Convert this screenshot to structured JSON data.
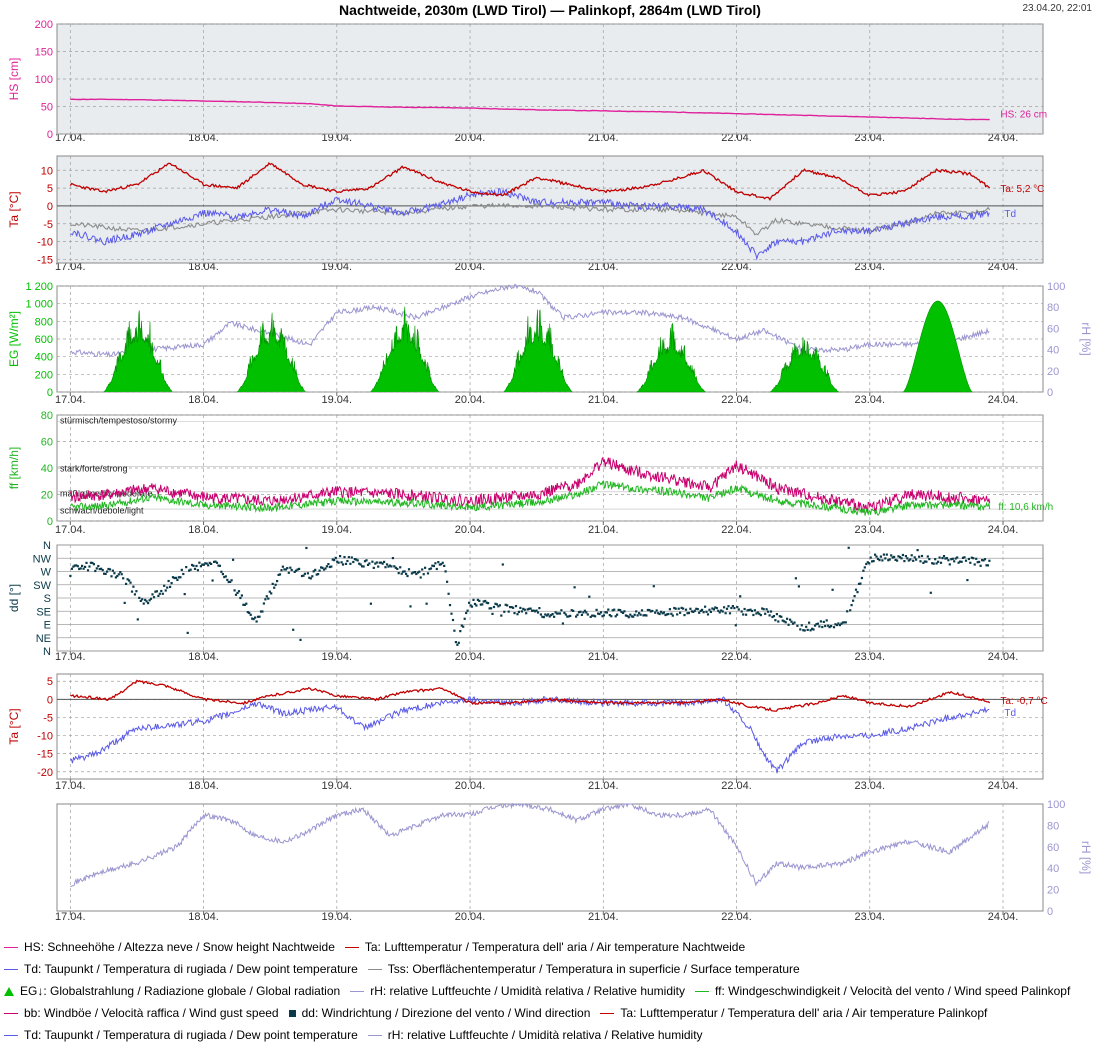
{
  "title": "Nachtweide, 2030m (LWD Tirol) — Palinkopf, 2864m (LWD Tirol)",
  "timestamp": "23.04.20, 22:01",
  "colors": {
    "hs": "#e0209a",
    "ta": "#c00000",
    "td": "#5a5ae8",
    "tss": "#8c8c8c",
    "eg": "#00c000",
    "rh": "#9a96d0",
    "ff": "#22b722",
    "bb": "#c8006e",
    "dd": "#0a3a4a",
    "panel_bg": "#e8ecef",
    "grid": "#a0a0a0"
  },
  "chart_data": [
    {
      "type": "line",
      "id": "hs",
      "x_ticks": [
        "17.04.",
        "18.04.",
        "19.04.",
        "20.04.",
        "21.04.",
        "22.04.",
        "23.04.",
        "24.04."
      ],
      "y_ticks": [
        "200",
        "150",
        "100",
        "50",
        "0"
      ],
      "ylabel": "HS [cm]",
      "ylim": [
        0,
        200
      ],
      "xlim": [
        0,
        7.05
      ],
      "series": [
        {
          "name": "HS",
          "x": [
            0,
            0.3,
            0.6,
            1.0,
            1.4,
            1.8,
            2.0,
            2.4,
            2.8,
            3.0,
            3.5,
            4.0,
            4.5,
            5.0,
            5.5,
            6.0,
            6.3,
            6.6,
            6.9
          ],
          "values": [
            63,
            63,
            62,
            60,
            58,
            55,
            51,
            49,
            48,
            47,
            44,
            42,
            40,
            37,
            34,
            31,
            29,
            27,
            26
          ]
        }
      ],
      "end_label": "HS: 26 cm"
    },
    {
      "type": "line",
      "id": "ta-nachtweide",
      "x_ticks": [
        "17.04.",
        "18.04.",
        "19.04.",
        "20.04.",
        "21.04.",
        "22.04.",
        "23.04.",
        "24.04."
      ],
      "y_ticks": [
        "10",
        "5",
        "0",
        "-5",
        "-10",
        "-15"
      ],
      "ylabel": "Ta [°C]",
      "ylim": [
        -16,
        14
      ],
      "series": [
        {
          "name": "Ta",
          "x": [
            0,
            0.25,
            0.5,
            0.75,
            1.0,
            1.25,
            1.5,
            1.75,
            2.0,
            2.25,
            2.5,
            2.75,
            3.0,
            3.25,
            3.5,
            3.75,
            4.0,
            4.25,
            4.5,
            4.75,
            5.0,
            5.25,
            5.5,
            5.75,
            6.0,
            6.25,
            6.5,
            6.75,
            6.9
          ],
          "values": [
            6,
            4,
            6,
            12,
            6,
            5,
            12,
            6,
            4,
            5,
            11,
            7,
            4,
            3,
            8,
            6,
            4,
            5,
            7,
            10,
            4,
            2,
            10,
            8,
            3,
            4,
            10,
            9,
            5
          ]
        },
        {
          "name": "Td",
          "x": [
            0,
            0.25,
            0.5,
            0.75,
            1.0,
            1.25,
            1.5,
            1.75,
            2.0,
            2.25,
            2.5,
            2.75,
            3.0,
            3.25,
            3.5,
            3.75,
            4.0,
            4.25,
            4.5,
            4.75,
            5.0,
            5.15,
            5.3,
            5.5,
            5.75,
            6.0,
            6.25,
            6.5,
            6.75,
            6.9
          ],
          "values": [
            -7,
            -10,
            -8,
            -5,
            -2,
            -3,
            -1,
            -3,
            2,
            0,
            -2,
            0,
            3,
            4,
            1,
            1,
            1,
            0,
            0,
            -1,
            -7,
            -14,
            -10,
            -10,
            -7,
            -7,
            -5,
            -3,
            -3,
            -2
          ]
        },
        {
          "name": "Tss",
          "x": [
            0,
            0.5,
            1.0,
            1.5,
            2.0,
            2.5,
            3.0,
            3.5,
            4.0,
            4.5,
            5.0,
            5.15,
            5.3,
            5.5,
            5.75,
            6.0,
            6.25,
            6.5,
            6.75,
            6.9
          ],
          "values": [
            -5,
            -7,
            -5,
            -3,
            -1,
            -2,
            0,
            0,
            -1,
            -1,
            -3,
            -8,
            -4,
            -5,
            -6,
            -7,
            -5,
            -2,
            -2,
            -1
          ]
        }
      ],
      "end_label": "Ta: 5,2 °C",
      "end_label_td": "Td"
    },
    {
      "type": "area",
      "id": "eg",
      "x_ticks": [
        "17.04.",
        "18.04.",
        "19.04.",
        "20.04.",
        "21.04.",
        "22.04.",
        "23.04.",
        "24.04."
      ],
      "y_ticks": [
        "1 200",
        "1 000",
        "800",
        "600",
        "400",
        "200",
        "0"
      ],
      "y2_ticks": [
        "100",
        "80",
        "60",
        "40",
        "20",
        "0"
      ],
      "ylabel": "EG [W/m²]",
      "y2label": "rH [%]",
      "ylim": [
        0,
        1200
      ],
      "y2lim": [
        0,
        100
      ],
      "series": [
        {
          "name": "EG",
          "day_peaks": [
            1000,
            990,
            1000,
            1020,
            800,
            730,
            1030,
            1040
          ]
        },
        {
          "name": "rH",
          "x": [
            0,
            0.3,
            0.6,
            1.0,
            1.2,
            1.5,
            1.8,
            2.0,
            2.3,
            2.6,
            3.0,
            3.3,
            3.5,
            3.7,
            4.0,
            4.3,
            4.6,
            4.8,
            5.0,
            5.2,
            5.5,
            5.8,
            6.0,
            6.3,
            6.6,
            6.9
          ],
          "values": [
            38,
            35,
            40,
            45,
            65,
            55,
            45,
            75,
            80,
            70,
            90,
            100,
            95,
            70,
            75,
            75,
            70,
            60,
            50,
            58,
            40,
            40,
            45,
            45,
            48,
            58
          ]
        }
      ]
    },
    {
      "type": "line",
      "id": "ff",
      "x_ticks": [
        "17.04.",
        "18.04.",
        "19.04.",
        "20.04.",
        "21.04.",
        "22.04.",
        "23.04.",
        "24.04."
      ],
      "y_ticks": [
        "80",
        "60",
        "40",
        "20",
        "0"
      ],
      "ylabel": "ff [km/h]",
      "ylim": [
        0,
        80
      ],
      "bands": [
        "stürmisch/tempestoso/stormy",
        "stark/forte/strong",
        "mäßig/medio/moderate",
        "schwach/debole/light"
      ],
      "series": [
        {
          "name": "bb",
          "x": [
            0,
            0.3,
            0.6,
            1.0,
            1.5,
            2.0,
            2.5,
            3.0,
            3.5,
            3.8,
            4.0,
            4.2,
            4.5,
            4.8,
            5.0,
            5.3,
            5.6,
            6.0,
            6.3,
            6.6,
            6.9
          ],
          "values": [
            18,
            20,
            25,
            18,
            15,
            22,
            20,
            15,
            20,
            28,
            45,
            38,
            32,
            25,
            42,
            25,
            18,
            10,
            20,
            18,
            15
          ]
        },
        {
          "name": "ff",
          "x": [
            0,
            0.3,
            0.6,
            1.0,
            1.5,
            2.0,
            2.5,
            3.0,
            3.5,
            3.8,
            4.0,
            4.2,
            4.5,
            4.8,
            5.0,
            5.3,
            5.6,
            6.0,
            6.3,
            6.6,
            6.9
          ],
          "values": [
            10,
            12,
            18,
            12,
            10,
            15,
            14,
            10,
            14,
            20,
            28,
            25,
            22,
            17,
            25,
            15,
            12,
            6,
            12,
            12,
            10.6
          ]
        }
      ],
      "end_label": "ff: 10,6 km/h"
    },
    {
      "type": "scatter",
      "id": "dd",
      "x_ticks": [
        "17.04.",
        "18.04.",
        "19.04.",
        "20.04.",
        "21.04.",
        "22.04.",
        "23.04.",
        "24.04."
      ],
      "y_ticks": [
        "N",
        "NW",
        "W",
        "SW",
        "S",
        "SE",
        "E",
        "NE",
        "N"
      ],
      "ylabel": "dd [°]",
      "ylim": [
        0,
        360
      ],
      "series": [
        {
          "name": "dd",
          "x": [
            0.0,
            0.2,
            0.4,
            0.55,
            0.7,
            0.85,
            1.0,
            1.1,
            1.4,
            1.5,
            1.6,
            1.8,
            2.0,
            2.2,
            2.4,
            2.6,
            2.8,
            2.9,
            3.0,
            3.2,
            3.4,
            3.6,
            3.8,
            4.0,
            4.3,
            4.6,
            4.9,
            5.2,
            5.5,
            5.7,
            5.8,
            6.0,
            6.2,
            6.5,
            6.8,
            6.9
          ],
          "values": [
            290,
            285,
            250,
            160,
            210,
            270,
            295,
            300,
            100,
            200,
            280,
            255,
            310,
            300,
            290,
            255,
            305,
            20,
            165,
            150,
            135,
            125,
            130,
            130,
            128,
            135,
            140,
            135,
            80,
            95,
            90,
            315,
            315,
            310,
            305,
            300
          ]
        }
      ]
    },
    {
      "type": "line",
      "id": "ta-palinkopf",
      "x_ticks": [
        "17.04.",
        "18.04.",
        "19.04.",
        "20.04.",
        "21.04.",
        "22.04.",
        "23.04.",
        "24.04."
      ],
      "y_ticks": [
        "5",
        "0",
        "-5",
        "-10",
        "-15",
        "-20"
      ],
      "ylabel": "Ta [°C]",
      "ylim": [
        -22,
        7
      ],
      "series": [
        {
          "name": "Ta",
          "x": [
            0,
            0.3,
            0.5,
            0.7,
            1.0,
            1.3,
            1.5,
            1.8,
            2.0,
            2.3,
            2.5,
            2.8,
            3.0,
            3.3,
            3.6,
            4.0,
            4.3,
            4.6,
            4.9,
            5.1,
            5.3,
            5.6,
            5.8,
            6.0,
            6.3,
            6.6,
            6.9
          ],
          "values": [
            1,
            0,
            5,
            4,
            0,
            -1,
            1,
            3,
            1,
            0,
            2,
            3,
            -1,
            -1,
            0,
            -1,
            -1,
            -1,
            0,
            -2,
            -3,
            -1,
            1,
            -1,
            -2,
            2,
            -0.7
          ]
        },
        {
          "name": "Td",
          "x": [
            0,
            0.2,
            0.5,
            0.8,
            1.0,
            1.2,
            1.4,
            1.6,
            1.8,
            2.0,
            2.2,
            2.5,
            2.8,
            3.0,
            3.3,
            3.6,
            4.0,
            4.3,
            4.6,
            4.9,
            5.1,
            5.2,
            5.3,
            5.5,
            5.8,
            6.0,
            6.3,
            6.6,
            6.9
          ],
          "values": [
            -17,
            -15,
            -8,
            -7,
            -6,
            -4,
            -1,
            -4,
            -3,
            -2,
            -8,
            -3,
            -1,
            0,
            -1,
            0,
            -1,
            -1,
            -1,
            0,
            -8,
            -15,
            -20,
            -12,
            -10,
            -10,
            -8,
            -5,
            -3
          ]
        }
      ],
      "end_label": "Ta: -0,7 °C",
      "end_label_td": "Td"
    },
    {
      "type": "line",
      "id": "rh-palinkopf",
      "x_ticks": [
        "17.04.",
        "18.04.",
        "19.04.",
        "20.04.",
        "21.04.",
        "22.04.",
        "23.04.",
        "24.04."
      ],
      "y2_ticks": [
        "100",
        "80",
        "60",
        "40",
        "20",
        "0"
      ],
      "y2label": "rH [%]",
      "y2lim": [
        0,
        100
      ],
      "series": [
        {
          "name": "rH",
          "x": [
            0,
            0.2,
            0.5,
            0.8,
            1.0,
            1.2,
            1.4,
            1.6,
            1.8,
            2.0,
            2.2,
            2.4,
            2.6,
            2.8,
            3.0,
            3.2,
            3.4,
            3.6,
            3.8,
            4.0,
            4.2,
            4.4,
            4.6,
            4.8,
            5.0,
            5.15,
            5.3,
            5.5,
            5.8,
            6.0,
            6.3,
            6.6,
            6.9
          ],
          "values": [
            25,
            35,
            45,
            60,
            90,
            85,
            70,
            65,
            75,
            90,
            95,
            70,
            80,
            90,
            90,
            98,
            100,
            95,
            85,
            95,
            100,
            90,
            90,
            95,
            60,
            25,
            45,
            40,
            45,
            55,
            65,
            55,
            82
          ]
        }
      ]
    }
  ],
  "legend": {
    "rows": [
      [
        {
          "symbol": "line",
          "color": "#e0209a",
          "label": "HS: Schneehöhe / Altezza neve / Snow height  Nachtweide"
        },
        {
          "symbol": "line",
          "color": "#c00000",
          "label": "Ta: Lufttemperatur / Temperatura dell' aria / Air temperature  Nachtweide"
        }
      ],
      [
        {
          "symbol": "line",
          "color": "#5a5ae8",
          "label": "Td: Taupunkt / Temperatura di rugiada / Dew point temperature"
        },
        {
          "symbol": "line",
          "color": "#8c8c8c",
          "label": "Tss: Oberflächentemperatur / Temperatura in superficie / Surface temperature"
        }
      ],
      [
        {
          "symbol": "tri",
          "color": "#00c000",
          "label": "EG↓: Globalstrahlung / Radiazione globale / Global radiation"
        },
        {
          "symbol": "line",
          "color": "#9a96d0",
          "label": "rH: relative Luftfeuchte / Umidità relativa / Relative humidity"
        },
        {
          "symbol": "line",
          "color": "#22b722",
          "label": "ff: Windgeschwindigkeit / Velocità del vento / Wind speed  Palinkopf"
        }
      ],
      [
        {
          "symbol": "line",
          "color": "#c8006e",
          "label": "bb: Windböe / Velocità raffica / Wind gust speed"
        },
        {
          "symbol": "square",
          "color": "#0a3a4a",
          "label": "dd: Windrichtung / Direzione del vento / Wind direction"
        },
        {
          "symbol": "line",
          "color": "#c00000",
          "label": "Ta: Lufttemperatur / Temperatura dell' aria / Air temperature  Palinkopf"
        }
      ],
      [
        {
          "symbol": "line",
          "color": "#5a5ae8",
          "label": "Td: Taupunkt / Temperatura di rugiada / Dew point temperature"
        },
        {
          "symbol": "line",
          "color": "#9a96d0",
          "label": "rH: relative Luftfeuchte / Umidità relativa / Relative humidity"
        }
      ]
    ]
  }
}
